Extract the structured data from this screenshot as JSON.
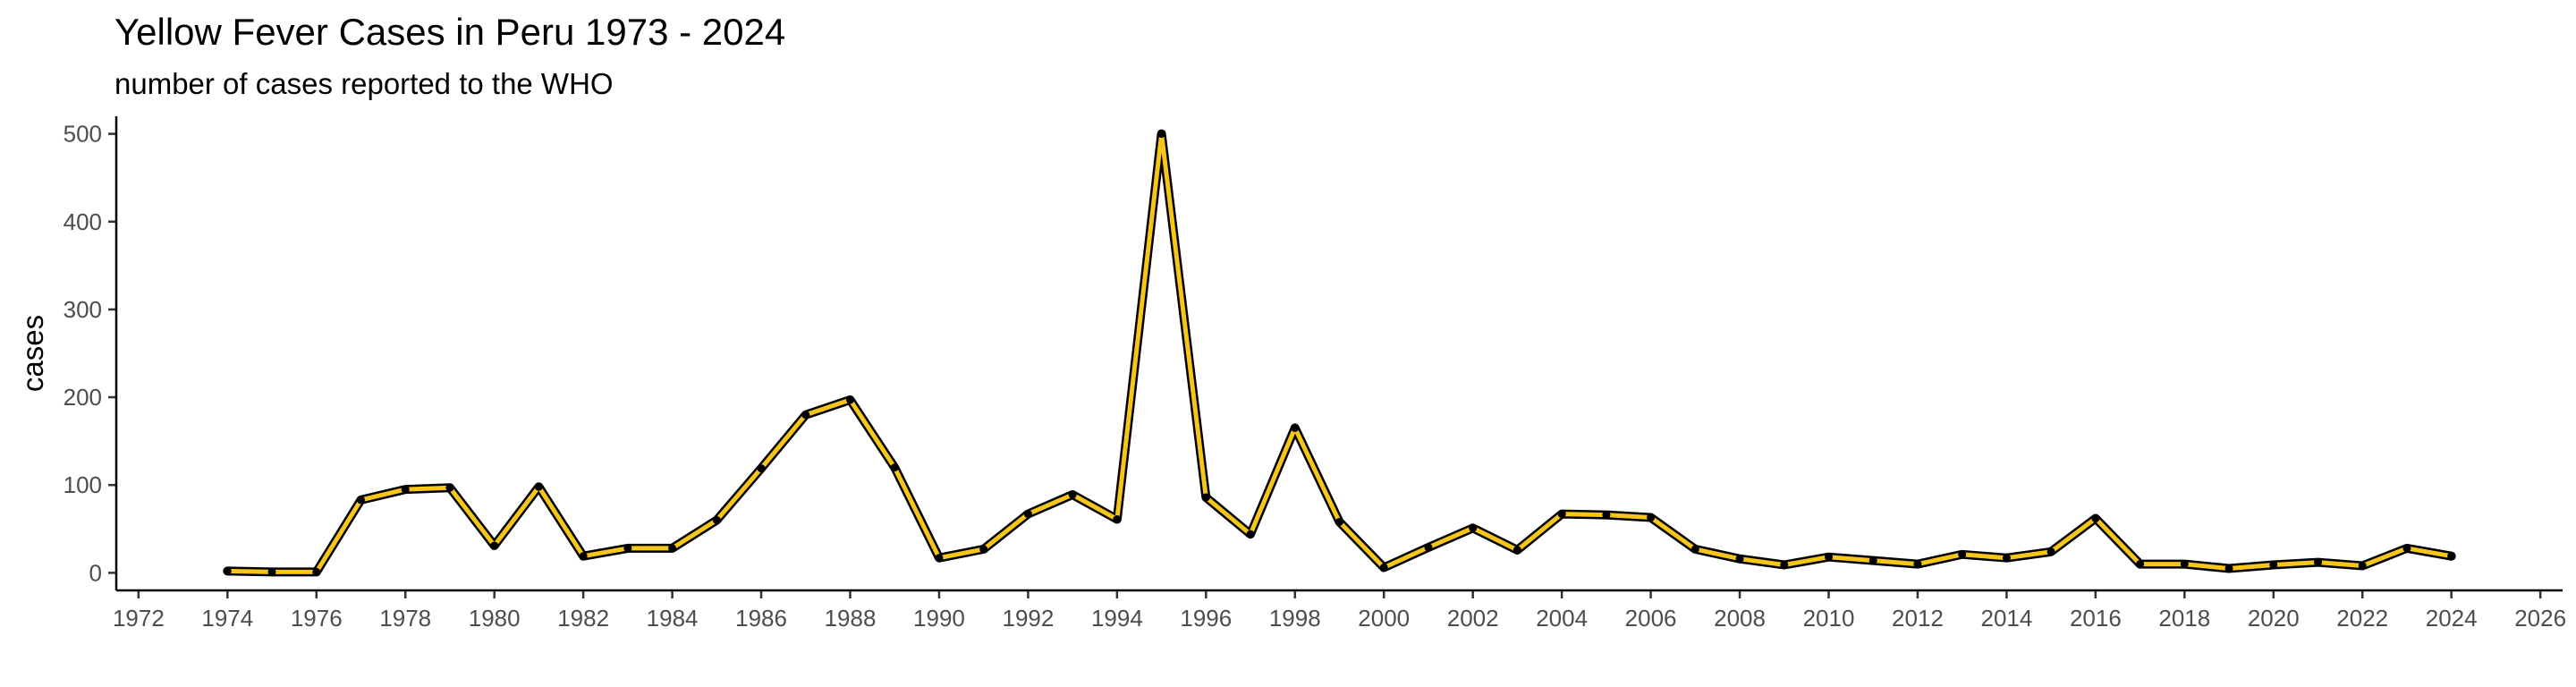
{
  "chart_data": {
    "type": "line",
    "title": "Yellow Fever Cases in Peru 1973 - 2024",
    "subtitle": "number of cases reported to the WHO",
    "xlabel": "",
    "ylabel": "cases",
    "xlim": [
      1971.5,
      2026.5
    ],
    "ylim": [
      -20,
      520
    ],
    "x_ticks": [
      1972,
      1974,
      1976,
      1978,
      1980,
      1982,
      1984,
      1986,
      1988,
      1990,
      1992,
      1994,
      1996,
      1998,
      2000,
      2002,
      2004,
      2006,
      2008,
      2010,
      2012,
      2014,
      2016,
      2018,
      2020,
      2022,
      2024,
      2026
    ],
    "y_ticks": [
      0,
      100,
      200,
      300,
      400,
      500
    ],
    "grid": false,
    "colors": {
      "line": "#F5C518",
      "outline": "#000000",
      "point": "#000000",
      "axis": "#000000"
    },
    "series": [
      {
        "x": [
          1974,
          1975,
          1976,
          1977,
          1978,
          1979,
          1980,
          1981,
          1982,
          1983,
          1984,
          1985,
          1986,
          1987,
          1988,
          1989,
          1990,
          1991,
          1992,
          1993,
          1994,
          1995,
          1996,
          1997,
          1998,
          1999,
          2000,
          2001,
          2002,
          2003,
          2004,
          2005,
          2006,
          2007,
          2008,
          2009,
          2010,
          2011,
          2012,
          2013,
          2014,
          2015,
          2016,
          2017,
          2018,
          2019,
          2020,
          2021,
          2022,
          2023,
          2024
        ],
        "values": [
          2,
          1,
          1,
          83,
          95,
          97,
          31,
          98,
          19,
          28,
          28,
          60,
          119,
          180,
          197,
          120,
          17,
          27,
          67,
          89,
          61,
          500,
          86,
          44,
          165,
          58,
          6,
          29,
          51,
          26,
          67,
          66,
          63,
          27,
          16,
          9,
          18,
          14,
          10,
          21,
          17,
          24,
          62,
          10,
          10,
          5,
          9,
          12,
          8,
          28,
          19
        ]
      }
    ]
  }
}
